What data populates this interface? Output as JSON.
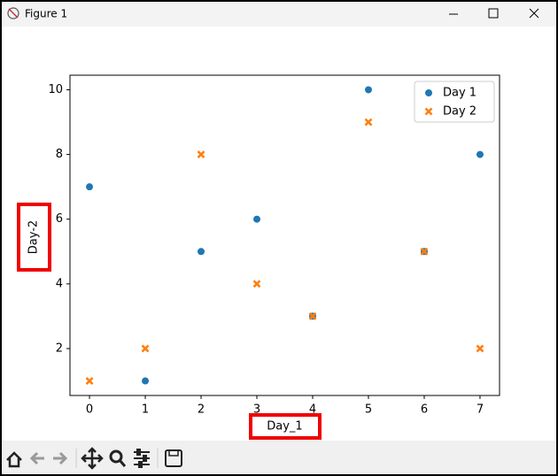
{
  "window": {
    "title": "Figure 1"
  },
  "chart_data": {
    "type": "scatter",
    "x": [
      0,
      1,
      2,
      3,
      4,
      5,
      6,
      7
    ],
    "series": [
      {
        "name": "Day 1",
        "color": "#1f77b4",
        "marker": "circle",
        "values": [
          7,
          1,
          5,
          6,
          3,
          10,
          5,
          8
        ]
      },
      {
        "name": "Day 2",
        "color": "#ff7f0e",
        "marker": "x",
        "values": [
          1,
          2,
          8,
          4,
          3,
          9,
          5,
          2
        ]
      }
    ],
    "x_label": "Day_1",
    "y_label": "Day-2",
    "xlim": [
      -0.35,
      7.35
    ],
    "xticks": [
      0,
      1,
      2,
      3,
      4,
      5,
      6,
      7
    ],
    "ylim": [
      0.55,
      10.45
    ],
    "yticks": [
      2,
      4,
      6,
      8,
      10
    ],
    "legend": "upper right"
  }
}
